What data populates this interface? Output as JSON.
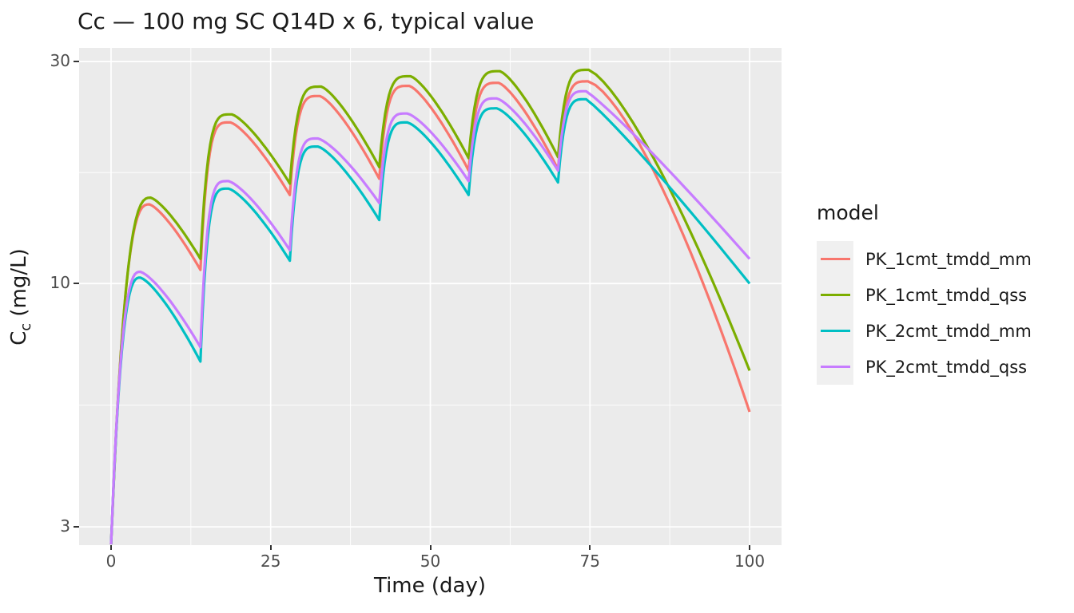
{
  "chart_data": {
    "type": "line",
    "title": "Cc — 100 mg SC Q14D x 6, typical value",
    "xlabel": "Time (day)",
    "ylabel": "Cc (mg/L)",
    "ylabel_parts": {
      "base": "C",
      "sub": "c",
      "rest": " (mg/L)"
    },
    "x_scale": "linear",
    "y_scale": "log10",
    "xlim": [
      -5,
      105
    ],
    "ylim": [
      2.74,
      32.1
    ],
    "x_ticks": [
      0,
      25,
      50,
      75,
      100
    ],
    "y_ticks": [
      3,
      10,
      30
    ],
    "x_minor_gridlines": [
      12.5,
      37.5,
      62.5,
      87.5
    ],
    "y_minor_gridlines": [
      5.48,
      17.32
    ],
    "grid": "on",
    "panel_background": "#EBEBEB",
    "gridline_color": "#FFFFFF",
    "dose_times": [
      0,
      14,
      28,
      42,
      56,
      70
    ],
    "t_end": 100,
    "legend": {
      "title": "model",
      "position": "right"
    },
    "series": [
      {
        "name": "PK_1cmt_tmdd_mm",
        "color": "#F8766D",
        "start": 2.75,
        "peaks": [
          [
            6.0,
            14.8
          ],
          [
            18.7,
            22.2
          ],
          [
            32.7,
            25.3
          ],
          [
            46.7,
            26.6
          ],
          [
            60.7,
            27.0
          ],
          [
            74.7,
            27.2
          ]
        ],
        "troughs": [
          10.7,
          15.5,
          16.8,
          17.5,
          17.6
        ],
        "end": 5.3,
        "terminal_shape": 1.45
      },
      {
        "name": "PK_1cmt_tmdd_qss",
        "color": "#7CAE00",
        "start": 2.75,
        "peaks": [
          [
            6.2,
            15.3
          ],
          [
            18.9,
            23.1
          ],
          [
            32.9,
            26.5
          ],
          [
            46.9,
            27.9
          ],
          [
            60.9,
            28.6
          ],
          [
            74.8,
            28.8
          ]
        ],
        "troughs": [
          11.3,
          16.4,
          17.8,
          18.6,
          18.7
        ],
        "end": 6.5,
        "terminal_shape": 1.35
      },
      {
        "name": "PK_2cmt_tmdd_mm",
        "color": "#00BFC4",
        "start": 2.75,
        "peaks": [
          [
            4.6,
            10.3
          ],
          [
            18.4,
            16.0
          ],
          [
            32.4,
            19.7
          ],
          [
            46.4,
            22.2
          ],
          [
            60.4,
            23.8
          ],
          [
            74.4,
            24.9
          ]
        ],
        "troughs": [
          6.8,
          11.2,
          13.7,
          15.5,
          16.5
        ],
        "end": 10.0,
        "terminal_shape": 1.1
      },
      {
        "name": "PK_2cmt_tmdd_qss",
        "color": "#C77CFF",
        "start": 2.75,
        "peaks": [
          [
            4.6,
            10.6
          ],
          [
            18.4,
            16.6
          ],
          [
            32.4,
            20.5
          ],
          [
            46.4,
            23.2
          ],
          [
            60.4,
            25.0
          ],
          [
            74.4,
            25.9
          ]
        ],
        "troughs": [
          7.3,
          11.8,
          14.9,
          16.6,
          17.5
        ],
        "end": 11.3,
        "terminal_shape": 1.1
      }
    ]
  }
}
